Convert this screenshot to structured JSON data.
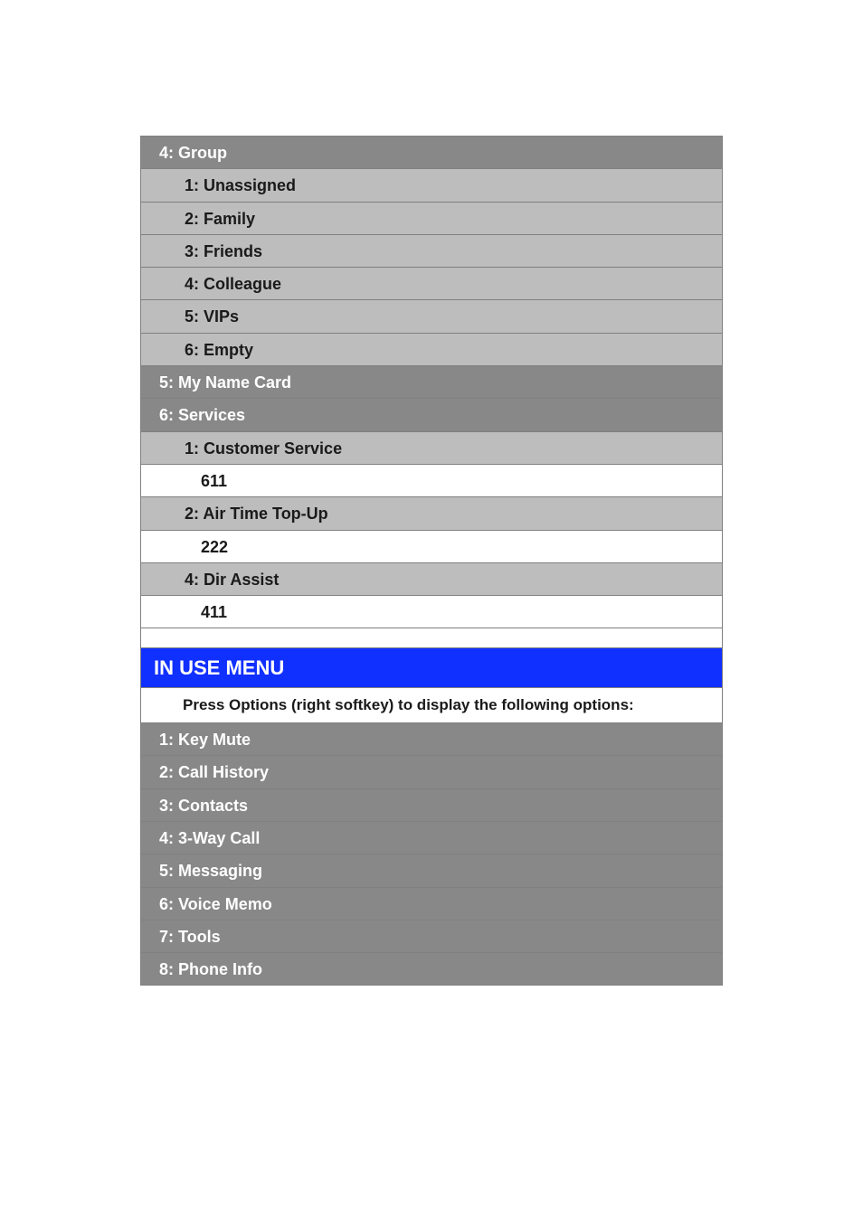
{
  "upper": {
    "group_header": "4: Group",
    "group_items": [
      "1: Unassigned",
      "2: Family",
      "3: Friends",
      "4: Colleague",
      "5: VIPs",
      "6: Empty"
    ],
    "my_name_card": "5: My Name Card",
    "services_header": "6: Services",
    "services": [
      {
        "label": "1: Customer Service",
        "value": "611"
      },
      {
        "label": "2: Air Time Top-Up",
        "value": "222"
      },
      {
        "label": "4: Dir Assist",
        "value": "411"
      }
    ]
  },
  "in_use_menu": {
    "title": "IN USE MENU",
    "instruction": "Press Options (right softkey) to display the following options:",
    "items": [
      "1: Key Mute",
      "2: Call History",
      "3: Contacts",
      "4: 3-Way Call",
      "5: Messaging",
      "6: Voice Memo",
      "7: Tools",
      "8: Phone Info"
    ]
  },
  "colors": {
    "header_bg": "#888888",
    "header_text": "#ffffff",
    "sub_bg": "#bdbdbd",
    "sub_text": "#1a1a1a",
    "value_bg": "#ffffff",
    "section_bg": "#1030ff",
    "border": "#808080"
  }
}
